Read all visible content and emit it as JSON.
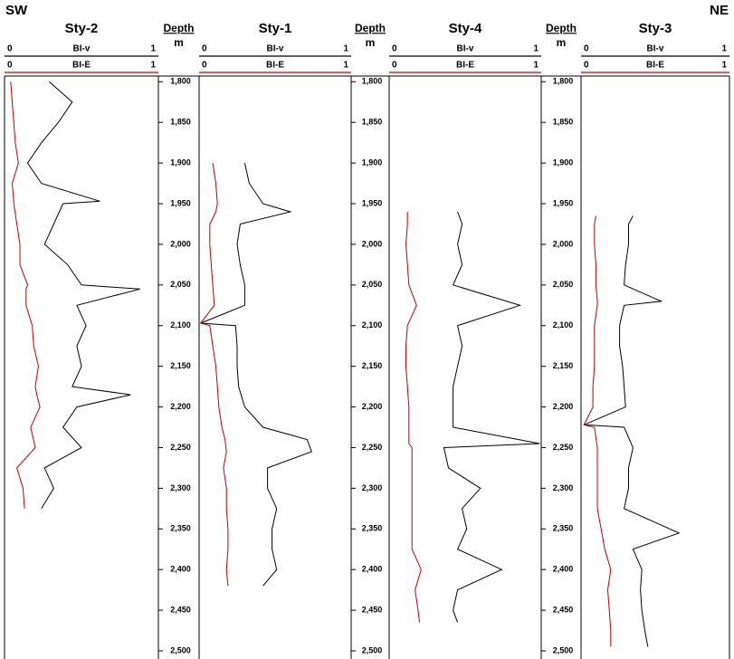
{
  "header": {
    "left": "SW",
    "right": "NE"
  },
  "chart_data": [
    {
      "type": "well-log",
      "title": "Sty-2",
      "xlim": [
        1793,
        2510
      ],
      "x": [
        1800,
        1825,
        1850,
        1875,
        1900,
        1925,
        1947,
        1950,
        1975,
        2000,
        2025,
        2050,
        2055,
        2075,
        2100,
        2125,
        2150,
        2175,
        2185,
        2200,
        2225,
        2250,
        2275,
        2300,
        2325
      ],
      "series": [
        {
          "name": "BI-v",
          "color": "#000000",
          "ylim": [
            0,
            1
          ],
          "values": [
            0.29,
            0.44,
            0.35,
            0.24,
            0.15,
            0.24,
            0.62,
            0.38,
            0.32,
            0.26,
            0.41,
            0.5,
            0.88,
            0.47,
            0.53,
            0.47,
            0.5,
            0.44,
            0.82,
            0.47,
            0.38,
            0.5,
            0.26,
            0.32,
            0.24
          ]
        },
        {
          "name": "BI-E",
          "color": "#c00000",
          "ylim": [
            0,
            1
          ],
          "values": [
            0.04,
            0.05,
            0.06,
            0.07,
            0.09,
            0.05,
            0.06,
            0.06,
            0.08,
            0.1,
            0.1,
            0.15,
            0.14,
            0.14,
            0.18,
            0.19,
            0.22,
            0.2,
            0.21,
            0.23,
            0.17,
            0.2,
            0.08,
            0.12,
            0.13
          ]
        }
      ]
    },
    {
      "type": "depth",
      "title": "Depth",
      "unit": "m",
      "xlim": [
        1793,
        2510
      ],
      "xticks": [
        {
          "value": 1800,
          "label": "1,800"
        },
        {
          "value": 1850,
          "label": "1,850"
        },
        {
          "value": 1900,
          "label": "1,900"
        },
        {
          "value": 1950,
          "label": "1,950"
        },
        {
          "value": 2000,
          "label": "2,000"
        },
        {
          "value": 2050,
          "label": "2,050"
        },
        {
          "value": 2100,
          "label": "2,100"
        },
        {
          "value": 2150,
          "label": "2,150"
        },
        {
          "value": 2200,
          "label": "2,200"
        },
        {
          "value": 2250,
          "label": "2,250"
        },
        {
          "value": 2300,
          "label": "2,300"
        },
        {
          "value": 2350,
          "label": "2,350"
        },
        {
          "value": 2400,
          "label": "2,400"
        },
        {
          "value": 2450,
          "label": "2,450"
        },
        {
          "value": 2500,
          "label": "2,500"
        }
      ]
    },
    {
      "type": "well-log",
      "title": "Sty-1",
      "xlim": [
        1793,
        2510
      ],
      "x": [
        1900,
        1925,
        1950,
        1960,
        1975,
        2000,
        2025,
        2050,
        2075,
        2097,
        2100,
        2125,
        2150,
        2175,
        2200,
        2225,
        2240,
        2255,
        2275,
        2300,
        2325,
        2350,
        2375,
        2400,
        2420
      ],
      "series": [
        {
          "name": "BI-v",
          "color": "#000000",
          "ylim": [
            0,
            1
          ],
          "values": [
            0.3,
            0.33,
            0.42,
            0.6,
            0.27,
            0.25,
            0.27,
            0.3,
            0.3,
            0.01,
            0.24,
            0.25,
            0.25,
            0.26,
            0.3,
            0.42,
            0.71,
            0.74,
            0.45,
            0.45,
            0.51,
            0.48,
            0.48,
            0.51,
            0.42
          ]
        },
        {
          "name": "BI-E",
          "color": "#c00000",
          "ylim": [
            0,
            1
          ],
          "values": [
            0.09,
            0.11,
            0.12,
            0.11,
            0.07,
            0.07,
            0.08,
            0.09,
            0.1,
            0.01,
            0.07,
            0.09,
            0.11,
            0.12,
            0.13,
            0.15,
            0.17,
            0.18,
            0.16,
            0.18,
            0.18,
            0.19,
            0.19,
            0.18,
            0.19
          ]
        }
      ]
    },
    {
      "type": "depth",
      "title": "Depth",
      "unit": "m",
      "xlim": [
        1793,
        2510
      ],
      "xticks": [
        {
          "value": 1800,
          "label": "1,800"
        },
        {
          "value": 1850,
          "label": "1,850"
        },
        {
          "value": 1900,
          "label": "1,900"
        },
        {
          "value": 1950,
          "label": "1,950"
        },
        {
          "value": 2000,
          "label": "2,000"
        },
        {
          "value": 2050,
          "label": "2,050"
        },
        {
          "value": 2100,
          "label": "2,100"
        },
        {
          "value": 2150,
          "label": "2,150"
        },
        {
          "value": 2200,
          "label": "2,200"
        },
        {
          "value": 2250,
          "label": "2,250"
        },
        {
          "value": 2300,
          "label": "2,300"
        },
        {
          "value": 2350,
          "label": "2,350"
        },
        {
          "value": 2400,
          "label": "2,400"
        },
        {
          "value": 2450,
          "label": "2,450"
        },
        {
          "value": 2500,
          "label": "2,500"
        }
      ]
    },
    {
      "type": "well-log",
      "title": "Sty-4",
      "xlim": [
        1793,
        2510
      ],
      "x": [
        1960,
        1975,
        2000,
        2025,
        2050,
        2075,
        2100,
        2125,
        2150,
        2175,
        2200,
        2225,
        2245,
        2250,
        2275,
        2300,
        2325,
        2350,
        2375,
        2400,
        2425,
        2450,
        2465
      ],
      "series": [
        {
          "name": "BI-v",
          "color": "#000000",
          "ylim": [
            0,
            1
          ],
          "values": [
            0.45,
            0.48,
            0.45,
            0.48,
            0.42,
            0.86,
            0.45,
            0.48,
            0.45,
            0.42,
            0.42,
            0.42,
            0.99,
            0.36,
            0.39,
            0.6,
            0.48,
            0.51,
            0.45,
            0.74,
            0.45,
            0.42,
            0.45
          ]
        },
        {
          "name": "BI-E",
          "color": "#c00000",
          "ylim": [
            0,
            1
          ],
          "values": [
            0.12,
            0.12,
            0.11,
            0.12,
            0.13,
            0.18,
            0.12,
            0.11,
            0.11,
            0.12,
            0.13,
            0.13,
            0.13,
            0.15,
            0.15,
            0.15,
            0.15,
            0.15,
            0.15,
            0.21,
            0.17,
            0.19,
            0.2
          ]
        }
      ]
    },
    {
      "type": "depth",
      "title": "Depth",
      "unit": "m",
      "xlim": [
        1793,
        2510
      ],
      "xticks": [
        {
          "value": 1800,
          "label": "1,800"
        },
        {
          "value": 1850,
          "label": "1,850"
        },
        {
          "value": 1900,
          "label": "1,900"
        },
        {
          "value": 1950,
          "label": "1,950"
        },
        {
          "value": 2000,
          "label": "2,000"
        },
        {
          "value": 2050,
          "label": "2,050"
        },
        {
          "value": 2100,
          "label": "2,100"
        },
        {
          "value": 2150,
          "label": "2,150"
        },
        {
          "value": 2200,
          "label": "2,200"
        },
        {
          "value": 2250,
          "label": "2,250"
        },
        {
          "value": 2300,
          "label": "2,300"
        },
        {
          "value": 2350,
          "label": "2,350"
        },
        {
          "value": 2400,
          "label": "2,400"
        },
        {
          "value": 2450,
          "label": "2,450"
        },
        {
          "value": 2500,
          "label": "2,500"
        }
      ]
    },
    {
      "type": "well-log",
      "title": "Sty-3",
      "xlim": [
        1793,
        2510
      ],
      "x": [
        1965,
        1975,
        2000,
        2025,
        2050,
        2070,
        2075,
        2100,
        2125,
        2150,
        2175,
        2200,
        2222,
        2225,
        2250,
        2275,
        2300,
        2325,
        2355,
        2375,
        2400,
        2425,
        2450,
        2475,
        2495
      ],
      "series": [
        {
          "name": "BI-v",
          "color": "#000000",
          "ylim": [
            0,
            1
          ],
          "values": [
            0.35,
            0.32,
            0.32,
            0.3,
            0.29,
            0.54,
            0.29,
            0.26,
            0.26,
            0.28,
            0.29,
            0.3,
            0.02,
            0.29,
            0.35,
            0.32,
            0.32,
            0.29,
            0.66,
            0.35,
            0.41,
            0.4,
            0.41,
            0.43,
            0.45
          ]
        },
        {
          "name": "BI-E",
          "color": "#c00000",
          "ylim": [
            0,
            1
          ],
          "values": [
            0.1,
            0.09,
            0.09,
            0.1,
            0.1,
            0.11,
            0.11,
            0.09,
            0.09,
            0.09,
            0.08,
            0.08,
            0.02,
            0.09,
            0.11,
            0.11,
            0.11,
            0.11,
            0.14,
            0.16,
            0.2,
            0.18,
            0.19,
            0.2,
            0.2
          ]
        }
      ]
    }
  ]
}
